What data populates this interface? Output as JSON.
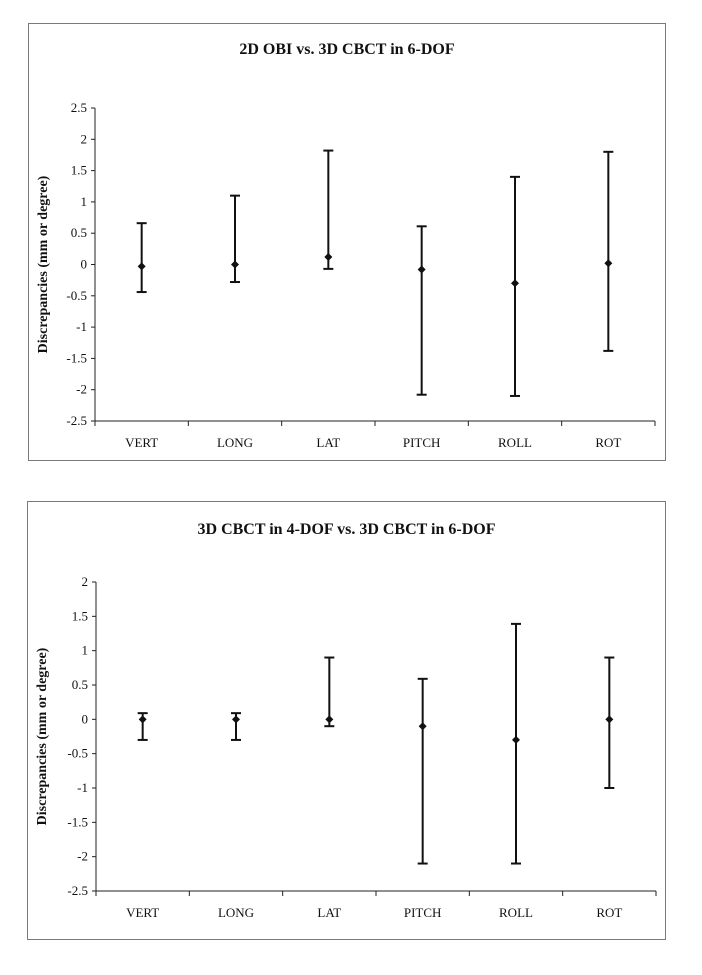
{
  "chart_data": [
    {
      "type": "scatter",
      "title": "2D OBI vs. 3D CBCT in 6-DOF",
      "xlabel": "",
      "ylabel": "Discrepancies (mm or degree)",
      "ylim": [
        -2.5,
        2.5
      ],
      "yticks": [
        2.5,
        2,
        1.5,
        1,
        0.5,
        0,
        -0.5,
        -1,
        -1.5,
        -2,
        -2.5
      ],
      "ytick_labels": [
        "2.5",
        "2",
        "1.5",
        "1",
        "0.5",
        "0",
        "-0.5",
        "-1",
        "-1.5",
        "-2",
        "-2.5"
      ],
      "categories": [
        "VERT",
        "LONG",
        "LAT",
        "PITCH",
        "ROLL",
        "ROT"
      ],
      "values": [
        -0.03,
        0.0,
        0.12,
        -0.08,
        -0.3,
        0.02
      ],
      "error_high": [
        0.66,
        1.1,
        1.82,
        0.61,
        1.4,
        1.8
      ],
      "error_low": [
        -0.44,
        -0.28,
        -0.07,
        -2.08,
        -2.1,
        -1.38
      ],
      "grid": false,
      "legend": "none"
    },
    {
      "type": "scatter",
      "title": "3D CBCT in 4-DOF vs. 3D CBCT in 6-DOF",
      "xlabel": "",
      "ylabel": "Discrepancies (mm or degree)",
      "ylim": [
        -2.5,
        2
      ],
      "yticks": [
        2,
        1.5,
        1,
        0.5,
        0,
        -0.5,
        -1,
        -1.5,
        -2,
        -2.5
      ],
      "ytick_labels": [
        "2",
        "1.5",
        "1",
        "0.5",
        "0",
        "-0.5",
        "-1",
        "-1.5",
        "-2",
        "-2.5"
      ],
      "categories": [
        "VERT",
        "LONG",
        "LAT",
        "PITCH",
        "ROLL",
        "ROT"
      ],
      "values": [
        0.0,
        0.0,
        0.0,
        -0.1,
        -0.3,
        0.0
      ],
      "error_high": [
        0.09,
        0.09,
        0.9,
        0.59,
        1.39,
        0.9
      ],
      "error_low": [
        -0.3,
        -0.3,
        -0.1,
        -2.1,
        -2.1,
        -1.0
      ],
      "grid": false,
      "legend": "none"
    }
  ]
}
